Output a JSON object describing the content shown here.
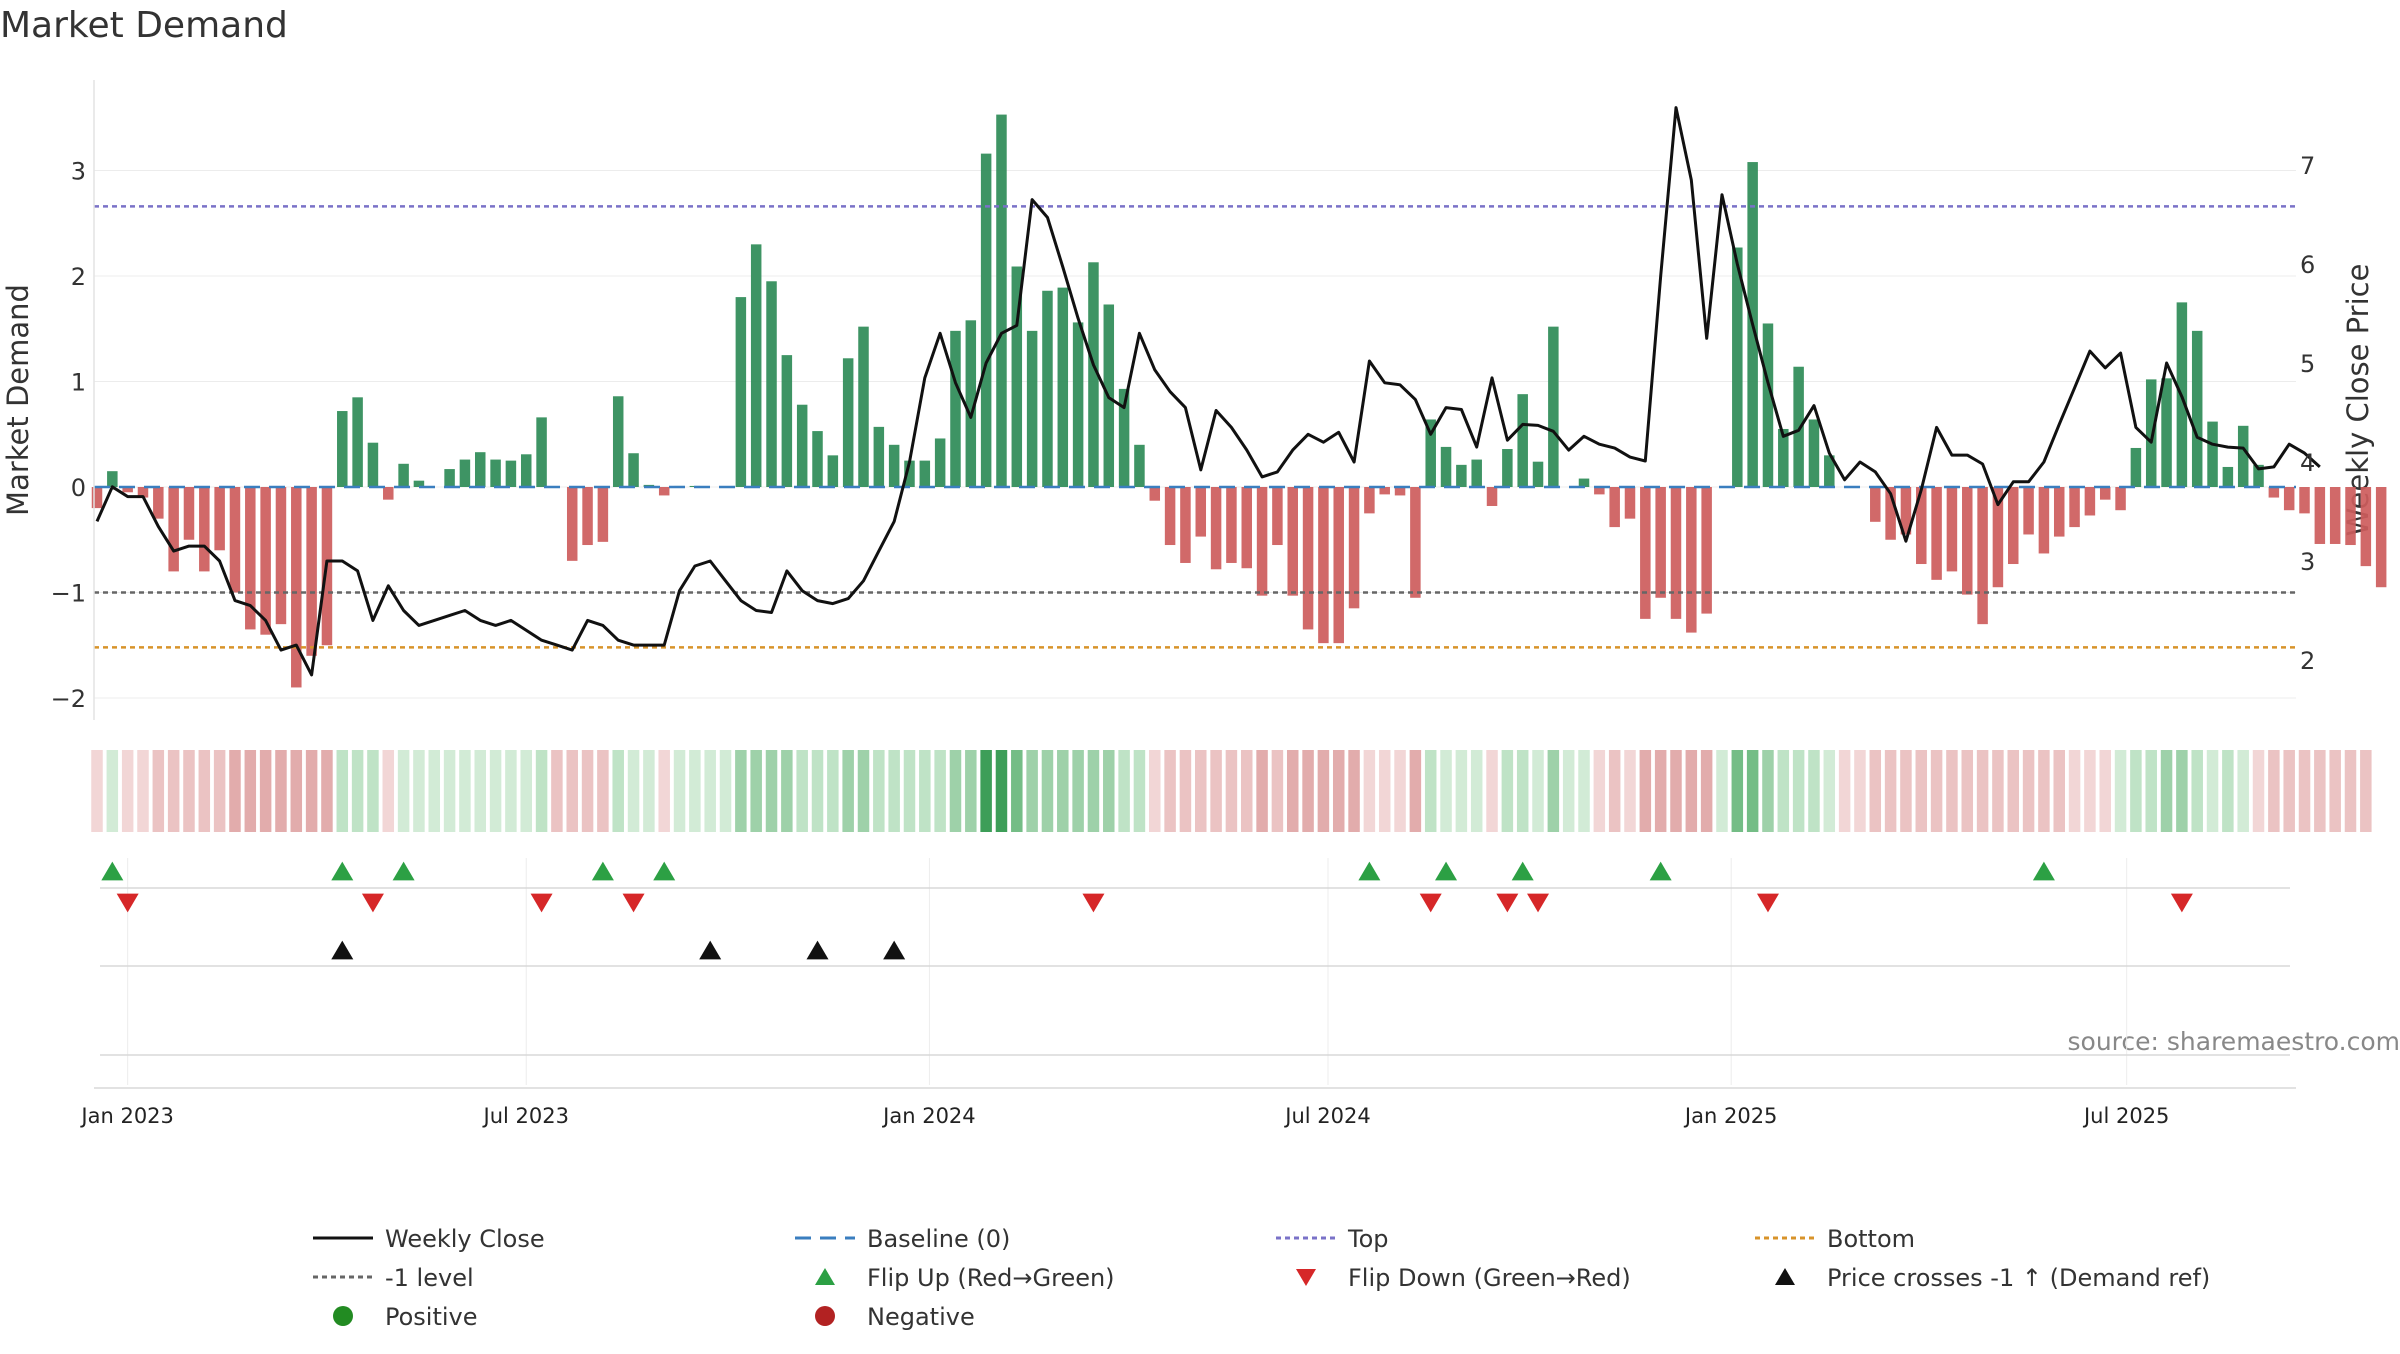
{
  "chart_data": {
    "type": "bar",
    "title": "Market Demand",
    "ylabel": "Market Demand",
    "y2label": "Weekly Close Price",
    "ylim": [
      -2.2,
      3.8
    ],
    "y2lim": [
      1.55,
      7.85
    ],
    "yticks": [
      -2,
      -1,
      0,
      1,
      2,
      3
    ],
    "ytick_labels": [
      "−2",
      "−1",
      "0",
      "1",
      "2",
      "3"
    ],
    "y2ticks": [
      2,
      3,
      4,
      5,
      6,
      7
    ],
    "y2tick_labels": [
      "2",
      "3",
      "4",
      "5",
      "6",
      "7"
    ],
    "xticks": [
      {
        "label": "Jan 2023",
        "week": 2
      },
      {
        "label": "Jul 2023",
        "week": 28
      },
      {
        "label": "Jan 2024",
        "week": 54.3
      },
      {
        "label": "Jul 2024",
        "week": 80.3
      },
      {
        "label": "Jan 2025",
        "week": 106.6
      },
      {
        "label": "Jul 2025",
        "week": 132.4
      }
    ],
    "x_start_week": 0,
    "x_end_week": 143.5,
    "top_level": 2.66,
    "bottom_level": -1.52,
    "minus1_level": -1.0,
    "colors": {
      "positive": "#2e8b57",
      "negative": "#cd5c5c",
      "close": "#111111",
      "baseline": "#3a7ebf",
      "top": "#7a72c8",
      "bottom": "#d8932a",
      "minus1": "#666666",
      "flip_up": "#2ca044",
      "flip_down": "#d62728",
      "cross": "#111111"
    },
    "demand": [
      -0.2,
      0.15,
      -0.05,
      -0.1,
      -0.3,
      -0.8,
      -0.5,
      -0.8,
      -0.6,
      -1.0,
      -1.35,
      -1.4,
      -1.3,
      -1.9,
      -1.6,
      -1.5,
      0.72,
      0.85,
      0.42,
      -0.12,
      0.22,
      0.06,
      0,
      0.17,
      0.26,
      0.33,
      0.26,
      0.25,
      0.31,
      0.66,
      0,
      -0.7,
      -0.55,
      -0.52,
      0.86,
      0.32,
      0.02,
      -0.08,
      0.01,
      0.01,
      0,
      0,
      1.8,
      2.3,
      1.95,
      1.25,
      0.78,
      0.53,
      0.3,
      1.22,
      1.52,
      0.57,
      0.4,
      0.25,
      0.25,
      0.46,
      1.48,
      1.58,
      3.16,
      3.53,
      2.09,
      1.48,
      1.86,
      1.89,
      1.56,
      2.13,
      1.73,
      0.93,
      0.4,
      -0.13,
      -0.55,
      -0.72,
      -0.47,
      -0.78,
      -0.72,
      -0.77,
      -1.03,
      -0.55,
      -1.03,
      -1.35,
      -1.48,
      -1.48,
      -1.15,
      -0.25,
      -0.07,
      -0.08,
      -1.05,
      0.64,
      0.38,
      0.21,
      0.26,
      -0.18,
      0.36,
      0.88,
      0.24,
      1.52,
      0,
      0.08,
      -0.07,
      -0.38,
      -0.3,
      -1.25,
      -1.05,
      -1.25,
      -1.38,
      -1.2,
      0,
      2.27,
      3.08,
      1.55,
      0.55,
      1.14,
      0.64,
      0.3,
      0,
      0,
      -0.33,
      -0.5,
      -0.45,
      -0.73,
      -0.88,
      -0.8,
      -1.02,
      -1.3,
      -0.95,
      -0.73,
      -0.45,
      -0.63,
      -0.47,
      -0.38,
      -0.27,
      -0.12,
      -0.22,
      0.37,
      1.02,
      1.03,
      1.75,
      1.48,
      0.62,
      0.19,
      0.58,
      0.21,
      -0.1,
      -0.22,
      -0.25,
      -0.54,
      -0.54,
      -0.55,
      -0.75,
      -0.95
    ],
    "close": [
      3.4,
      3.75,
      3.65,
      3.65,
      3.35,
      3.1,
      3.15,
      3.15,
      3.0,
      2.6,
      2.55,
      2.4,
      2.1,
      2.15,
      1.85,
      3.0,
      3.0,
      2.9,
      2.4,
      2.75,
      2.5,
      2.35,
      2.4,
      2.45,
      2.5,
      2.4,
      2.35,
      2.4,
      2.3,
      2.2,
      2.15,
      2.1,
      2.4,
      2.35,
      2.2,
      2.15,
      2.15,
      2.15,
      2.7,
      2.95,
      3.0,
      2.8,
      2.6,
      2.5,
      2.48,
      2.9,
      2.7,
      2.6,
      2.57,
      2.62,
      2.8,
      3.1,
      3.4,
      4.0,
      4.85,
      5.3,
      4.8,
      4.45,
      5.0,
      5.3,
      5.38,
      6.65,
      6.47,
      5.97,
      5.45,
      4.98,
      4.65,
      4.55,
      5.3,
      4.93,
      4.71,
      4.55,
      3.92,
      4.52,
      4.35,
      4.12,
      3.85,
      3.9,
      4.12,
      4.28,
      4.2,
      4.3,
      4.0,
      5.02,
      4.8,
      4.78,
      4.63,
      4.28,
      4.55,
      4.53,
      4.15,
      4.85,
      4.22,
      4.38,
      4.37,
      4.31,
      4.12,
      4.26,
      4.18,
      4.14,
      4.05,
      4.01,
      5.88,
      7.58,
      6.85,
      5.25,
      6.7,
      6.0,
      5.39,
      4.8,
      4.26,
      4.32,
      4.57,
      4.09,
      3.82,
      4.0,
      3.9,
      3.68,
      3.2,
      3.72,
      4.35,
      4.07,
      4.07,
      3.98,
      3.57,
      3.8,
      3.8,
      4.0,
      4.38,
      4.75,
      5.12,
      4.95,
      5.1,
      4.35,
      4.2,
      5.0,
      4.66,
      4.25,
      4.18,
      4.15,
      4.14,
      3.93,
      3.95,
      4.18,
      4.09,
      3.95
    ],
    "strip_levels": [
      -1,
      1,
      -1,
      -1,
      -2,
      -2,
      -2,
      -2,
      -2,
      -3,
      -3,
      -3,
      -3,
      -3,
      -3,
      -3,
      2,
      2,
      2,
      -1,
      1,
      1,
      1,
      1,
      1,
      1,
      1,
      1,
      1,
      2,
      -2,
      -2,
      -2,
      -2,
      2,
      1,
      1,
      -1,
      1,
      1,
      1,
      1,
      3,
      3,
      3,
      3,
      2,
      2,
      2,
      3,
      3,
      2,
      2,
      2,
      2,
      2,
      3,
      3,
      5,
      5,
      4,
      3,
      3,
      3,
      3,
      3,
      3,
      2,
      2,
      -1,
      -2,
      -2,
      -2,
      -2,
      -2,
      -2,
      -3,
      -2,
      -3,
      -3,
      -3,
      -3,
      -3,
      -1,
      -1,
      -1,
      -3,
      2,
      1,
      1,
      1,
      -1,
      2,
      2,
      1,
      3,
      1,
      1,
      -1,
      -2,
      -1,
      -3,
      -3,
      -3,
      -3,
      -3,
      1,
      4,
      4,
      3,
      2,
      2,
      2,
      1,
      -1,
      -1,
      -2,
      -2,
      -2,
      -2,
      -2,
      -2,
      -2,
      -2,
      -2,
      -2,
      -2,
      -2,
      -2,
      -1,
      -1,
      -1,
      1,
      2,
      2,
      3,
      3,
      2,
      1,
      2,
      1,
      -1,
      -2,
      -2,
      -2,
      -2,
      -2,
      -2,
      -2
    ],
    "flip_up_weeks": [
      1,
      16,
      20,
      33,
      37,
      83,
      88,
      93,
      102,
      127
    ],
    "flip_down_weeks": [
      2,
      18,
      29,
      35,
      65,
      87,
      92,
      94,
      109,
      136
    ],
    "cross_up_weeks": [
      16,
      40,
      47,
      52
    ],
    "source": "source: sharemaestro.com",
    "legend": [
      {
        "label": "Weekly Close",
        "symbol": "line-solid",
        "color": "#111111"
      },
      {
        "label": "Baseline (0)",
        "symbol": "line-dash",
        "color": "#3a7ebf"
      },
      {
        "label": "Top",
        "symbol": "line-dot",
        "color": "#7a72c8"
      },
      {
        "label": "Bottom",
        "symbol": "line-dot",
        "color": "#d8932a"
      },
      {
        "label": "-1 level",
        "symbol": "line-dot",
        "color": "#666666"
      },
      {
        "label": "Flip Up (Red→Green)",
        "symbol": "tri-up",
        "color": "#2ca044"
      },
      {
        "label": "Flip Down (Green→Red)",
        "symbol": "tri-down",
        "color": "#d62728"
      },
      {
        "label": "Price crosses -1 ↑ (Demand ref)",
        "symbol": "tri-up",
        "color": "#111111"
      },
      {
        "label": "Positive",
        "symbol": "dot",
        "color": "#228b22"
      },
      {
        "label": "Negative",
        "symbol": "dot",
        "color": "#b22222"
      }
    ]
  }
}
